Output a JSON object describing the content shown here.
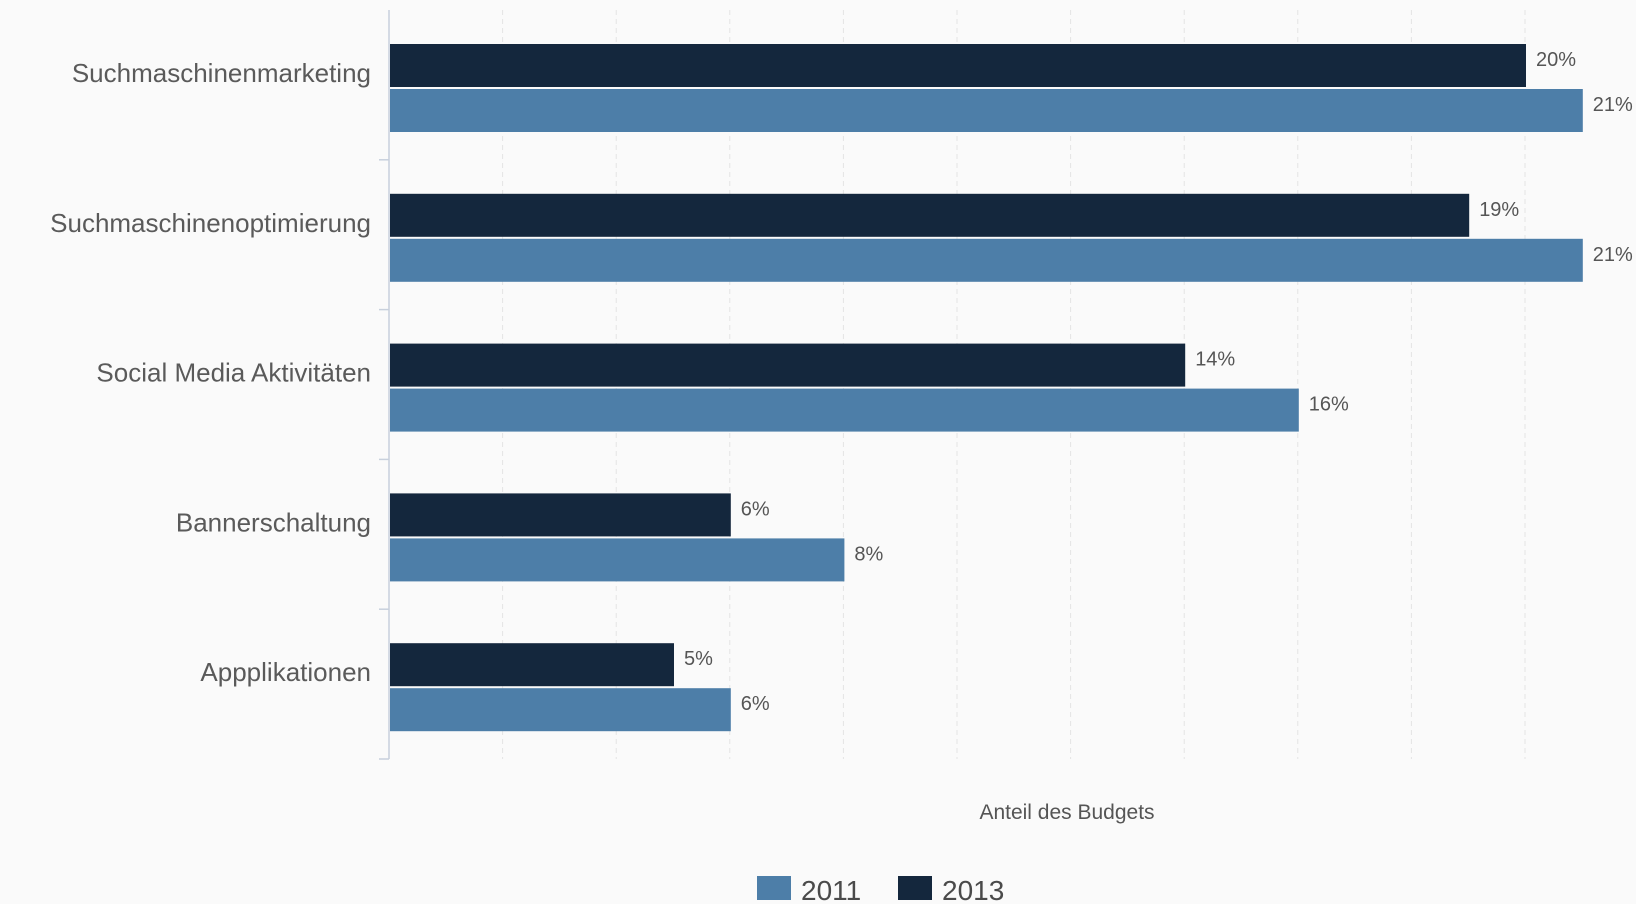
{
  "chart_data": {
    "type": "bar",
    "orientation": "horizontal",
    "categories": [
      "Suchmaschinenmarketing",
      "Suchmaschinenoptimierung",
      "Social Media Aktivitäten",
      "Bannerschaltung",
      "Appplikationen"
    ],
    "series": [
      {
        "name": "2013",
        "values": [
          20,
          19,
          14,
          6,
          5
        ],
        "labels": [
          "20%",
          "19%",
          "14%",
          "6%",
          "5%"
        ]
      },
      {
        "name": "2011",
        "values": [
          21,
          21,
          16,
          8,
          6
        ],
        "labels": [
          "21%",
          "21%",
          "16%",
          "8%",
          "6%"
        ]
      }
    ],
    "xlabel": "Anteil des Budgets",
    "xlim": [
      0,
      22
    ],
    "grid": true,
    "legend": {
      "position": "bottom-center",
      "items": [
        {
          "name": "2011",
          "color": "#4d7ea8"
        },
        {
          "name": "2013",
          "color": "#14273d"
        }
      ]
    },
    "colors": {
      "2011": "#4d7ea8",
      "2013": "#14273d"
    }
  }
}
